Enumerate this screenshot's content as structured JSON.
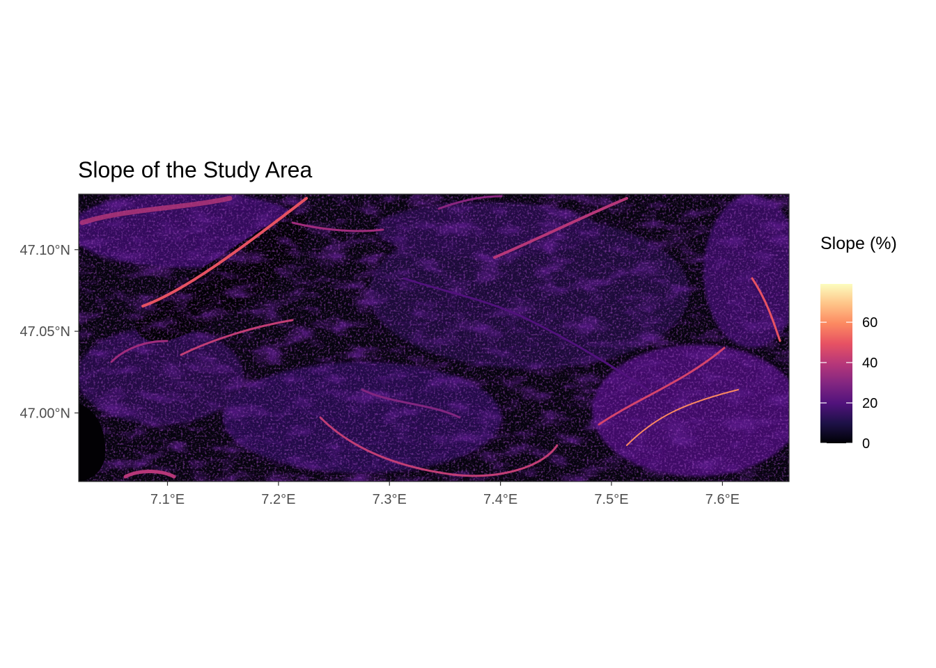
{
  "title": "Slope of the Study Area",
  "map": {
    "type": "raster",
    "variable": "Slope (%)",
    "colormap": "magma",
    "x_axis": {
      "range": [
        7.02,
        7.66
      ],
      "ticks": [
        {
          "value": 7.1,
          "label": "7.1°E"
        },
        {
          "value": 7.2,
          "label": "7.2°E"
        },
        {
          "value": 7.3,
          "label": "7.3°E"
        },
        {
          "value": 7.4,
          "label": "7.4°E"
        },
        {
          "value": 7.5,
          "label": "7.5°E"
        },
        {
          "value": 7.6,
          "label": "7.6°E"
        }
      ]
    },
    "y_axis": {
      "range": [
        46.958,
        47.134
      ],
      "ticks": [
        {
          "value": 47.0,
          "label": "47.00°N"
        },
        {
          "value": 47.05,
          "label": "47.05°N"
        },
        {
          "value": 47.1,
          "label": "47.10°N"
        }
      ]
    }
  },
  "legend": {
    "title": "Slope (%)",
    "range": [
      0,
      79
    ],
    "ticks": [
      {
        "value": 0,
        "label": "0"
      },
      {
        "value": 20,
        "label": "20"
      },
      {
        "value": 40,
        "label": "40"
      },
      {
        "value": 60,
        "label": "60"
      }
    ],
    "colors": [
      "#000004",
      "#1d1147",
      "#51127c",
      "#822681",
      "#b73779",
      "#e75263",
      "#fc8961",
      "#fec488",
      "#fcfdbf"
    ]
  }
}
